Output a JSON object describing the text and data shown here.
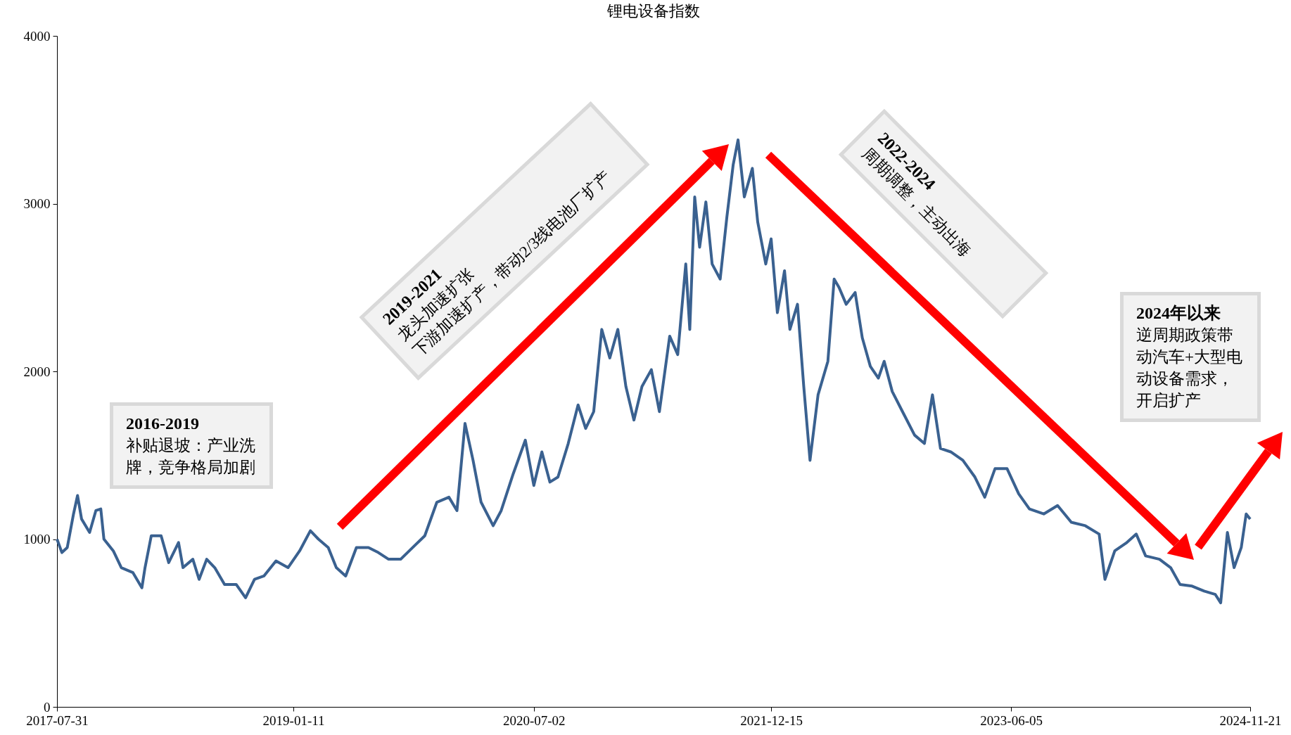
{
  "chart_data": {
    "type": "line",
    "title": "锂电设备指数",
    "x": [
      "2017-07-31",
      "2017-08-11",
      "2017-08-23",
      "2017-09-06",
      "2017-09-15",
      "2017-09-24",
      "2017-10-12",
      "2017-10-26",
      "2017-11-06",
      "2017-11-13",
      "2017-12-04",
      "2017-12-22",
      "2018-01-17",
      "2018-02-06",
      "2018-02-13",
      "2018-02-27",
      "2018-03-21",
      "2018-04-07",
      "2018-04-29",
      "2018-05-09",
      "2018-05-31",
      "2018-06-14",
      "2018-07-01",
      "2018-07-19",
      "2018-08-10",
      "2018-09-05",
      "2018-09-26",
      "2018-10-16",
      "2018-11-06",
      "2018-12-03",
      "2018-12-30",
      "2019-01-25",
      "2019-02-18",
      "2019-03-08",
      "2019-03-30",
      "2019-04-17",
      "2019-05-08",
      "2019-06-01",
      "2019-06-28",
      "2019-07-20",
      "2019-08-12",
      "2019-09-08",
      "2019-10-05",
      "2019-11-01",
      "2019-11-28",
      "2019-12-25",
      "2020-01-12",
      "2020-01-30",
      "2020-02-17",
      "2020-03-06",
      "2020-04-02",
      "2020-04-20",
      "2020-05-17",
      "2020-06-13",
      "2020-07-02",
      "2020-07-20",
      "2020-08-07",
      "2020-08-25",
      "2020-09-17",
      "2020-10-09",
      "2020-10-26",
      "2020-11-13",
      "2020-12-01",
      "2020-12-19",
      "2021-01-06",
      "2021-01-24",
      "2021-02-11",
      "2021-03-01",
      "2021-03-22",
      "2021-04-09",
      "2021-05-02",
      "2021-05-20",
      "2021-06-07",
      "2021-06-16",
      "2021-06-27",
      "2021-07-08",
      "2021-07-22",
      "2021-08-05",
      "2021-08-23",
      "2021-09-07",
      "2021-09-21",
      "2021-10-02",
      "2021-10-16",
      "2021-11-03",
      "2021-11-15",
      "2021-12-03",
      "2021-12-15",
      "2021-12-29",
      "2022-01-14",
      "2022-01-26",
      "2022-02-12",
      "2022-02-26",
      "2022-03-12",
      "2022-03-30",
      "2022-04-21",
      "2022-05-05",
      "2022-05-16",
      "2022-06-01",
      "2022-06-21",
      "2022-07-07",
      "2022-07-25",
      "2022-08-12",
      "2022-08-25",
      "2022-09-12",
      "2022-10-05",
      "2022-11-01",
      "2022-11-23",
      "2022-12-11",
      "2022-12-29",
      "2023-01-21",
      "2023-02-17",
      "2023-03-16",
      "2023-04-07",
      "2023-04-30",
      "2023-05-27",
      "2023-06-22",
      "2023-07-16",
      "2023-08-17",
      "2023-09-17",
      "2023-10-18",
      "2023-11-18",
      "2023-12-19",
      "2024-01-01",
      "2024-01-23",
      "2024-02-19",
      "2024-03-11",
      "2024-04-01",
      "2024-05-02",
      "2024-05-27",
      "2024-06-17",
      "2024-07-14",
      "2024-08-10",
      "2024-09-04",
      "2024-09-16",
      "2024-10-01",
      "2024-10-16",
      "2024-11-01",
      "2024-11-12",
      "2024-11-21"
    ],
    "values": [
      1000,
      920,
      950,
      1150,
      1260,
      1120,
      1040,
      1170,
      1180,
      1000,
      930,
      830,
      800,
      710,
      830,
      1020,
      1020,
      860,
      980,
      830,
      880,
      760,
      880,
      830,
      730,
      730,
      650,
      760,
      780,
      870,
      830,
      930,
      1050,
      1000,
      950,
      830,
      780,
      950,
      950,
      920,
      880,
      880,
      950,
      1020,
      1220,
      1250,
      1170,
      1690,
      1470,
      1220,
      1080,
      1170,
      1390,
      1590,
      1320,
      1520,
      1340,
      1370,
      1570,
      1800,
      1660,
      1760,
      2250,
      2080,
      2250,
      1910,
      1710,
      1910,
      2010,
      1760,
      2210,
      2100,
      2640,
      2250,
      3040,
      2740,
      3010,
      2640,
      2550,
      2920,
      3230,
      3380,
      3040,
      3210,
      2890,
      2640,
      2790,
      2350,
      2600,
      2250,
      2400,
      1910,
      1470,
      1860,
      2060,
      2550,
      2500,
      2400,
      2470,
      2200,
      2030,
      1960,
      2060,
      1880,
      1760,
      1620,
      1570,
      1860,
      1540,
      1520,
      1470,
      1370,
      1250,
      1420,
      1420,
      1270,
      1180,
      1150,
      1200,
      1100,
      1080,
      1030,
      760,
      930,
      980,
      1030,
      900,
      880,
      830,
      730,
      720,
      690,
      670,
      620,
      1040,
      830,
      950,
      1150,
      1120
    ],
    "color": "#3a6190",
    "xlim": [
      "2017-07-31",
      "2024-11-21"
    ],
    "xticks": [
      "2017-07-31",
      "2019-01-11",
      "2020-07-02",
      "2021-12-15",
      "2023-06-05",
      "2024-11-21"
    ],
    "ylim": [
      0,
      4000
    ],
    "yticks": [
      0,
      1000,
      2000,
      3000,
      4000
    ],
    "grid": false,
    "annotations": [
      "2016-2019",
      "补贴退坡：产业洗牌，竞争格局加剧",
      "2019-2021",
      "龙头加速扩张",
      "下游加速扩产，带动2/3线电池厂扩产",
      "2022-2024",
      "周期调整，主动出海",
      "2024年以来",
      "逆周期政策带动汽车+大型电动设备需求，开启扩产"
    ]
  }
}
